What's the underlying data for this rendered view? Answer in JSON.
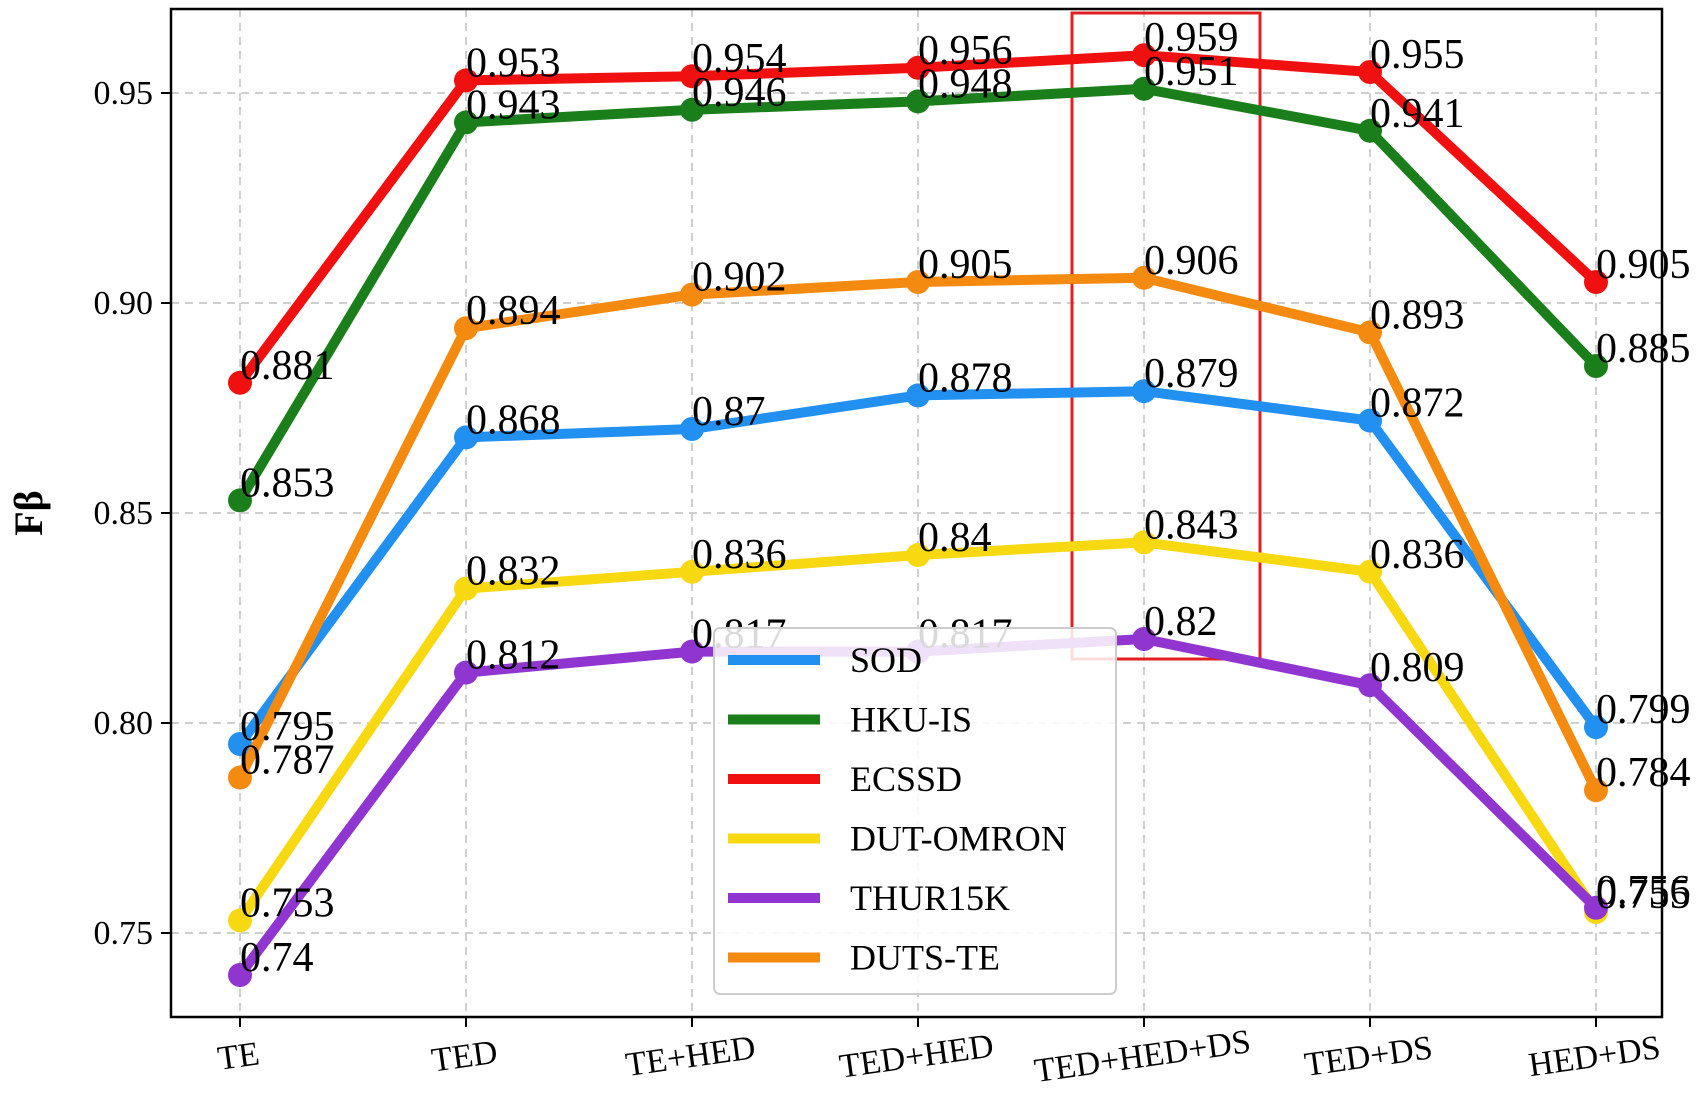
{
  "chart_data": {
    "type": "line",
    "title": "",
    "xlabel": "",
    "ylabel": "Fβ",
    "categories": [
      "TE",
      "TED",
      "TE+HED",
      "TED+HED",
      "TED+HED+DS",
      "TED+DS",
      "HED+DS"
    ],
    "ylim": [
      0.73,
      0.97
    ],
    "yticks": [
      0.75,
      0.8,
      0.85,
      0.9,
      0.95
    ],
    "ytick_labels": [
      "0.75",
      "0.80",
      "0.85",
      "0.90",
      "0.95"
    ],
    "grid": true,
    "legend_position": "lower-center",
    "highlight": {
      "category": "TED+HED+DS",
      "color": "#e02020"
    },
    "series": [
      {
        "name": "SOD",
        "color": "#2290f0",
        "values": [
          0.795,
          0.868,
          0.87,
          0.878,
          0.879,
          0.872,
          0.799
        ],
        "labels": [
          "0.795",
          "0.868",
          "0.87",
          "0.878",
          "0.879",
          "0.872",
          "0.799"
        ]
      },
      {
        "name": "HKU-IS",
        "color": "#1a7f1a",
        "values": [
          0.853,
          0.943,
          0.946,
          0.948,
          0.951,
          0.941,
          0.885
        ],
        "labels": [
          "0.853",
          "0.943",
          "0.946",
          "0.948",
          "0.951",
          "0.941",
          "0.885"
        ]
      },
      {
        "name": "ECSSD",
        "color": "#f01010",
        "values": [
          0.881,
          0.953,
          0.954,
          0.956,
          0.959,
          0.955,
          0.905
        ],
        "labels": [
          "0.881",
          "0.953",
          "0.954",
          "0.956",
          "0.959",
          "0.955",
          "0.905"
        ]
      },
      {
        "name": "DUT-OMRON",
        "color": "#f8d810",
        "values": [
          0.753,
          0.832,
          0.836,
          0.84,
          0.843,
          0.836,
          0.755
        ],
        "labels": [
          "0.753",
          "0.832",
          "0.836",
          "0.84",
          "0.843",
          "0.836",
          "0.755"
        ]
      },
      {
        "name": "THUR15K",
        "color": "#9035d0",
        "values": [
          0.74,
          0.812,
          0.817,
          0.817,
          0.82,
          0.809,
          0.756
        ],
        "labels": [
          "0.74",
          "0.812",
          "0.817",
          "0.817",
          "0.82",
          "0.809",
          "0.756"
        ]
      },
      {
        "name": "DUTS-TE",
        "color": "#f58a10",
        "values": [
          0.787,
          0.894,
          0.902,
          0.905,
          0.906,
          0.893,
          0.784
        ],
        "labels": [
          "0.787",
          "0.894",
          "0.902",
          "0.905",
          "0.906",
          "0.893",
          "0.784"
        ]
      }
    ]
  }
}
